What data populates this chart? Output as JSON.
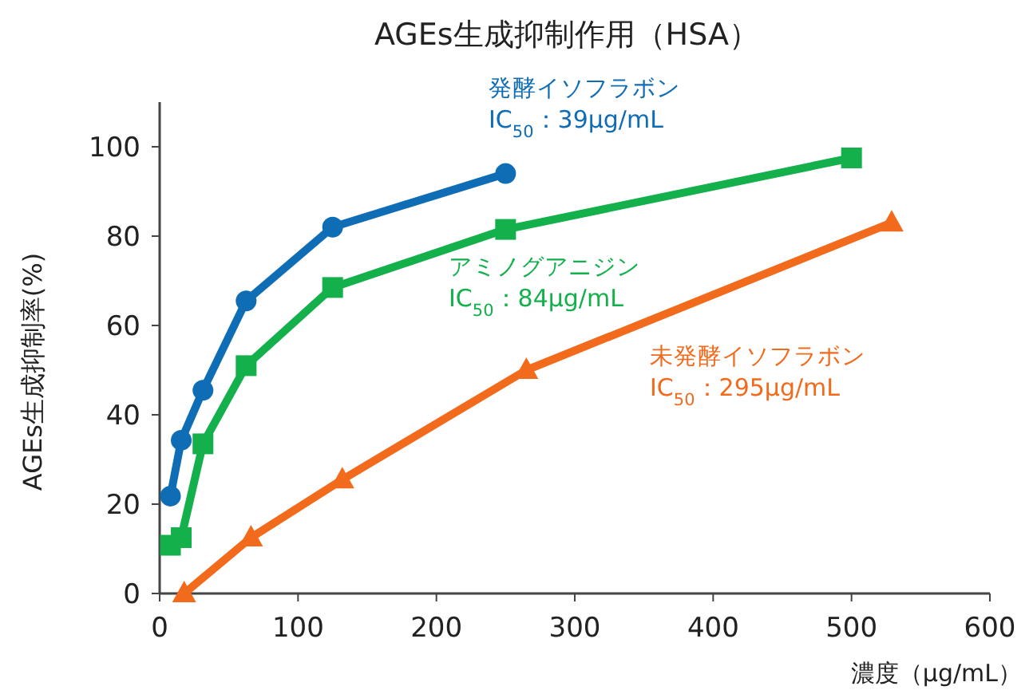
{
  "chart_data": {
    "type": "line",
    "title": "AGEs生成抑制作用（HSA）",
    "xlabel": "濃度（μg/mL）",
    "ylabel": "AGEs生成抑制率(%)",
    "xlim": [
      0,
      600
    ],
    "xticks": [
      0,
      100,
      200,
      300,
      400,
      500,
      600
    ],
    "ylim": [
      0,
      110
    ],
    "yticks": [
      0,
      20,
      40,
      60,
      80,
      100
    ],
    "annotations": [
      "IC$_{50}$：39μg/mL",
      "IC$_{50}$：84μg/mL",
      "IC$_{50}$：295μg/mL"
    ],
    "series": [
      {
        "name": "発酵イソフラボン",
        "color": "#0f6db5",
        "marker": "circle",
        "x": [
          7.8,
          15.6,
          31.3,
          62.5,
          125,
          250
        ],
        "values": [
          21.8,
          34.3,
          45.5,
          65.5,
          82,
          94
        ]
      },
      {
        "name": "アミノグアニジン",
        "color": "#14b04c",
        "marker": "square",
        "x": [
          7.8,
          15.6,
          31.3,
          62.5,
          125,
          250,
          500
        ],
        "values": [
          10.8,
          12.5,
          33.5,
          51,
          68.5,
          81.5,
          97.5
        ]
      },
      {
        "name": "未発酵イソフラボン",
        "color": "#f26b1d",
        "marker": "triangle",
        "x": [
          17.7,
          66,
          132,
          265,
          529
        ],
        "values": [
          0,
          12.5,
          25.5,
          50,
          83
        ]
      }
    ]
  }
}
